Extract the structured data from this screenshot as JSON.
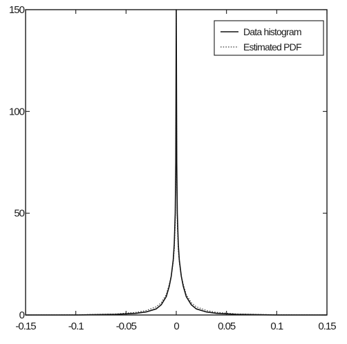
{
  "chart_data": {
    "type": "line",
    "title": "",
    "xlabel": "",
    "ylabel": "",
    "xlim": [
      -0.15,
      0.15
    ],
    "ylim": [
      0,
      150
    ],
    "xticks": [
      -0.15,
      -0.1,
      -0.05,
      0,
      0.05,
      0.1,
      0.15
    ],
    "xtick_labels": [
      "-0.15",
      "-0.1",
      "-0.05",
      "0",
      "0.05",
      "0.1",
      "0.15"
    ],
    "yticks": [
      0,
      50,
      100,
      150
    ],
    "ytick_labels": [
      "0",
      "50",
      "100",
      "150"
    ],
    "grid": false,
    "legend_position": "top-right",
    "series": [
      {
        "name": "Data histogram",
        "style": "solid",
        "color": "#111111",
        "x": [
          -0.15,
          -0.1,
          -0.06,
          -0.04,
          -0.03,
          -0.02,
          -0.015,
          -0.01,
          -0.007,
          -0.005,
          -0.003,
          -0.002,
          -0.001,
          -0.0005,
          0,
          0.0005,
          0.001,
          0.002,
          0.003,
          0.005,
          0.007,
          0.01,
          0.015,
          0.02,
          0.03,
          0.04,
          0.06,
          0.1,
          0.15
        ],
        "y": [
          0,
          0,
          0.3,
          0.8,
          1.5,
          3,
          5,
          9,
          14,
          19,
          27,
          35,
          50,
          75,
          150,
          75,
          50,
          35,
          27,
          19,
          14,
          9,
          5,
          3,
          1.5,
          0.8,
          0.3,
          0,
          0
        ]
      },
      {
        "name": "Estimated PDF",
        "style": "dotted",
        "color": "#333333",
        "x": [
          -0.15,
          -0.1,
          -0.06,
          -0.04,
          -0.03,
          -0.02,
          -0.015,
          -0.01,
          -0.007,
          -0.005,
          -0.003,
          -0.002,
          -0.001,
          -0.0005,
          0,
          0.0005,
          0.001,
          0.002,
          0.003,
          0.005,
          0.007,
          0.01,
          0.015,
          0.02,
          0.03,
          0.04,
          0.06,
          0.1,
          0.15
        ],
        "y": [
          0,
          0.1,
          0.5,
          1.3,
          2.2,
          4,
          6,
          10,
          15,
          19,
          26,
          32,
          45,
          70,
          150,
          70,
          45,
          32,
          26,
          19,
          15,
          10,
          6,
          4,
          2.2,
          1.3,
          0.5,
          0.1,
          0
        ]
      }
    ]
  }
}
